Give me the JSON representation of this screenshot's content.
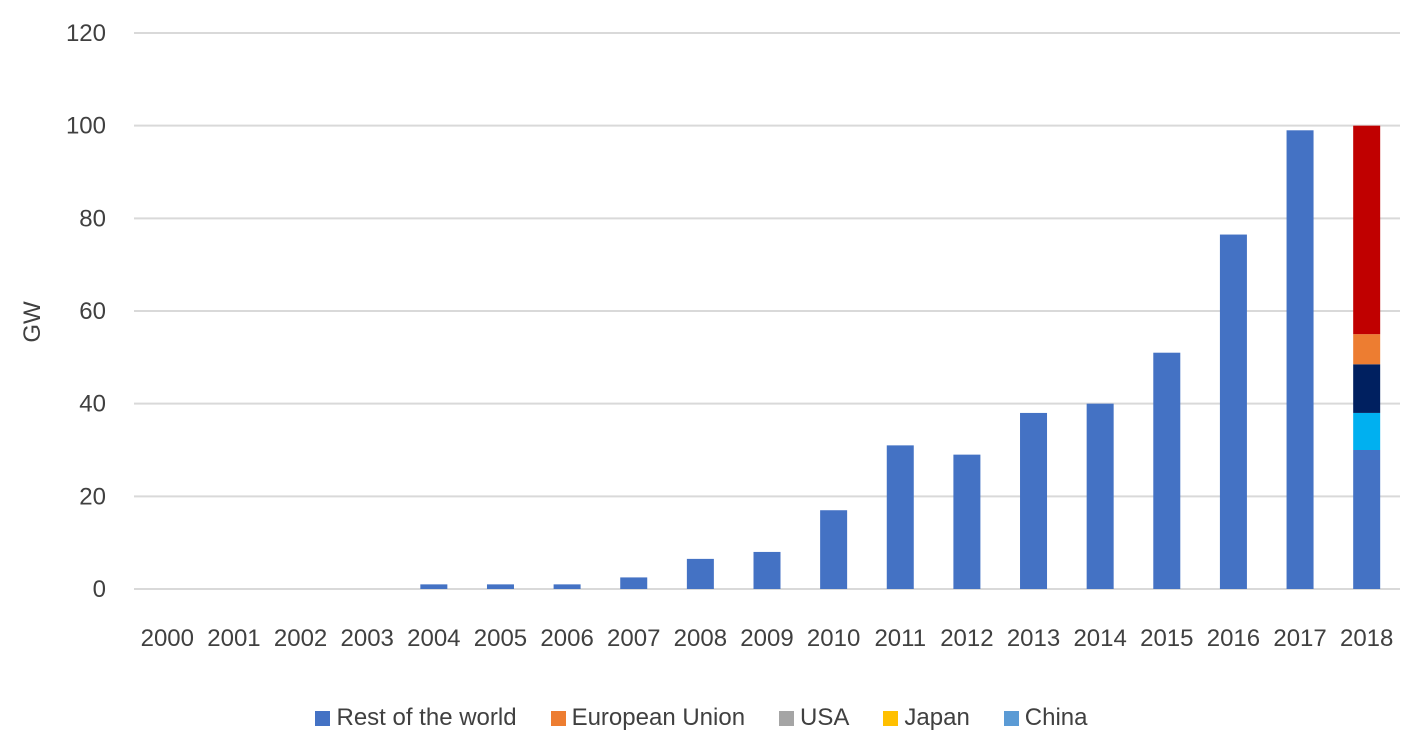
{
  "chart_data": {
    "type": "bar",
    "stacked": true,
    "title": "",
    "xlabel": "",
    "ylabel": "GW",
    "ylim": [
      0,
      120
    ],
    "yticks": [
      0,
      20,
      40,
      60,
      80,
      100,
      120
    ],
    "grid": true,
    "legend_position": "bottom",
    "categories": [
      "2000",
      "2001",
      "2002",
      "2003",
      "2004",
      "2005",
      "2006",
      "2007",
      "2008",
      "2009",
      "2010",
      "2011",
      "2012",
      "2013",
      "2014",
      "2015",
      "2016",
      "2017",
      "2018"
    ],
    "series": [
      {
        "name": "Rest of the world",
        "color": "#4472C4",
        "values": [
          0,
          0,
          0,
          0,
          1,
          1,
          1,
          2.5,
          6.5,
          8,
          17,
          31,
          29,
          38,
          40,
          51,
          76.5,
          99,
          30
        ]
      },
      {
        "name": "",
        "color": "#00B0F0",
        "values": [
          0,
          0,
          0,
          0,
          0,
          0,
          0,
          0,
          0,
          0,
          0,
          0,
          0,
          0,
          0,
          0,
          0,
          0,
          8
        ]
      },
      {
        "name": "",
        "color": "#002060",
        "values": [
          0,
          0,
          0,
          0,
          0,
          0,
          0,
          0,
          0,
          0,
          0,
          0,
          0,
          0,
          0,
          0,
          0,
          0,
          10.5
        ]
      },
      {
        "name": "",
        "color": "#ED7D31",
        "values": [
          0,
          0,
          0,
          0,
          0,
          0,
          0,
          0,
          0,
          0,
          0,
          0,
          0,
          0,
          0,
          0,
          0,
          0,
          6.5
        ]
      },
      {
        "name": "",
        "color": "#C00000",
        "values": [
          0,
          0,
          0,
          0,
          0,
          0,
          0,
          0,
          0,
          0,
          0,
          0,
          0,
          0,
          0,
          0,
          0,
          0,
          45
        ]
      }
    ],
    "legend": [
      {
        "label": "Rest of the world",
        "color": "#4472C4"
      },
      {
        "label": "European Union",
        "color": "#ED7D31"
      },
      {
        "label": "USA",
        "color": "#A5A5A5"
      },
      {
        "label": "Japan",
        "color": "#FFC000"
      },
      {
        "label": "China",
        "color": "#5B9BD5"
      }
    ]
  }
}
